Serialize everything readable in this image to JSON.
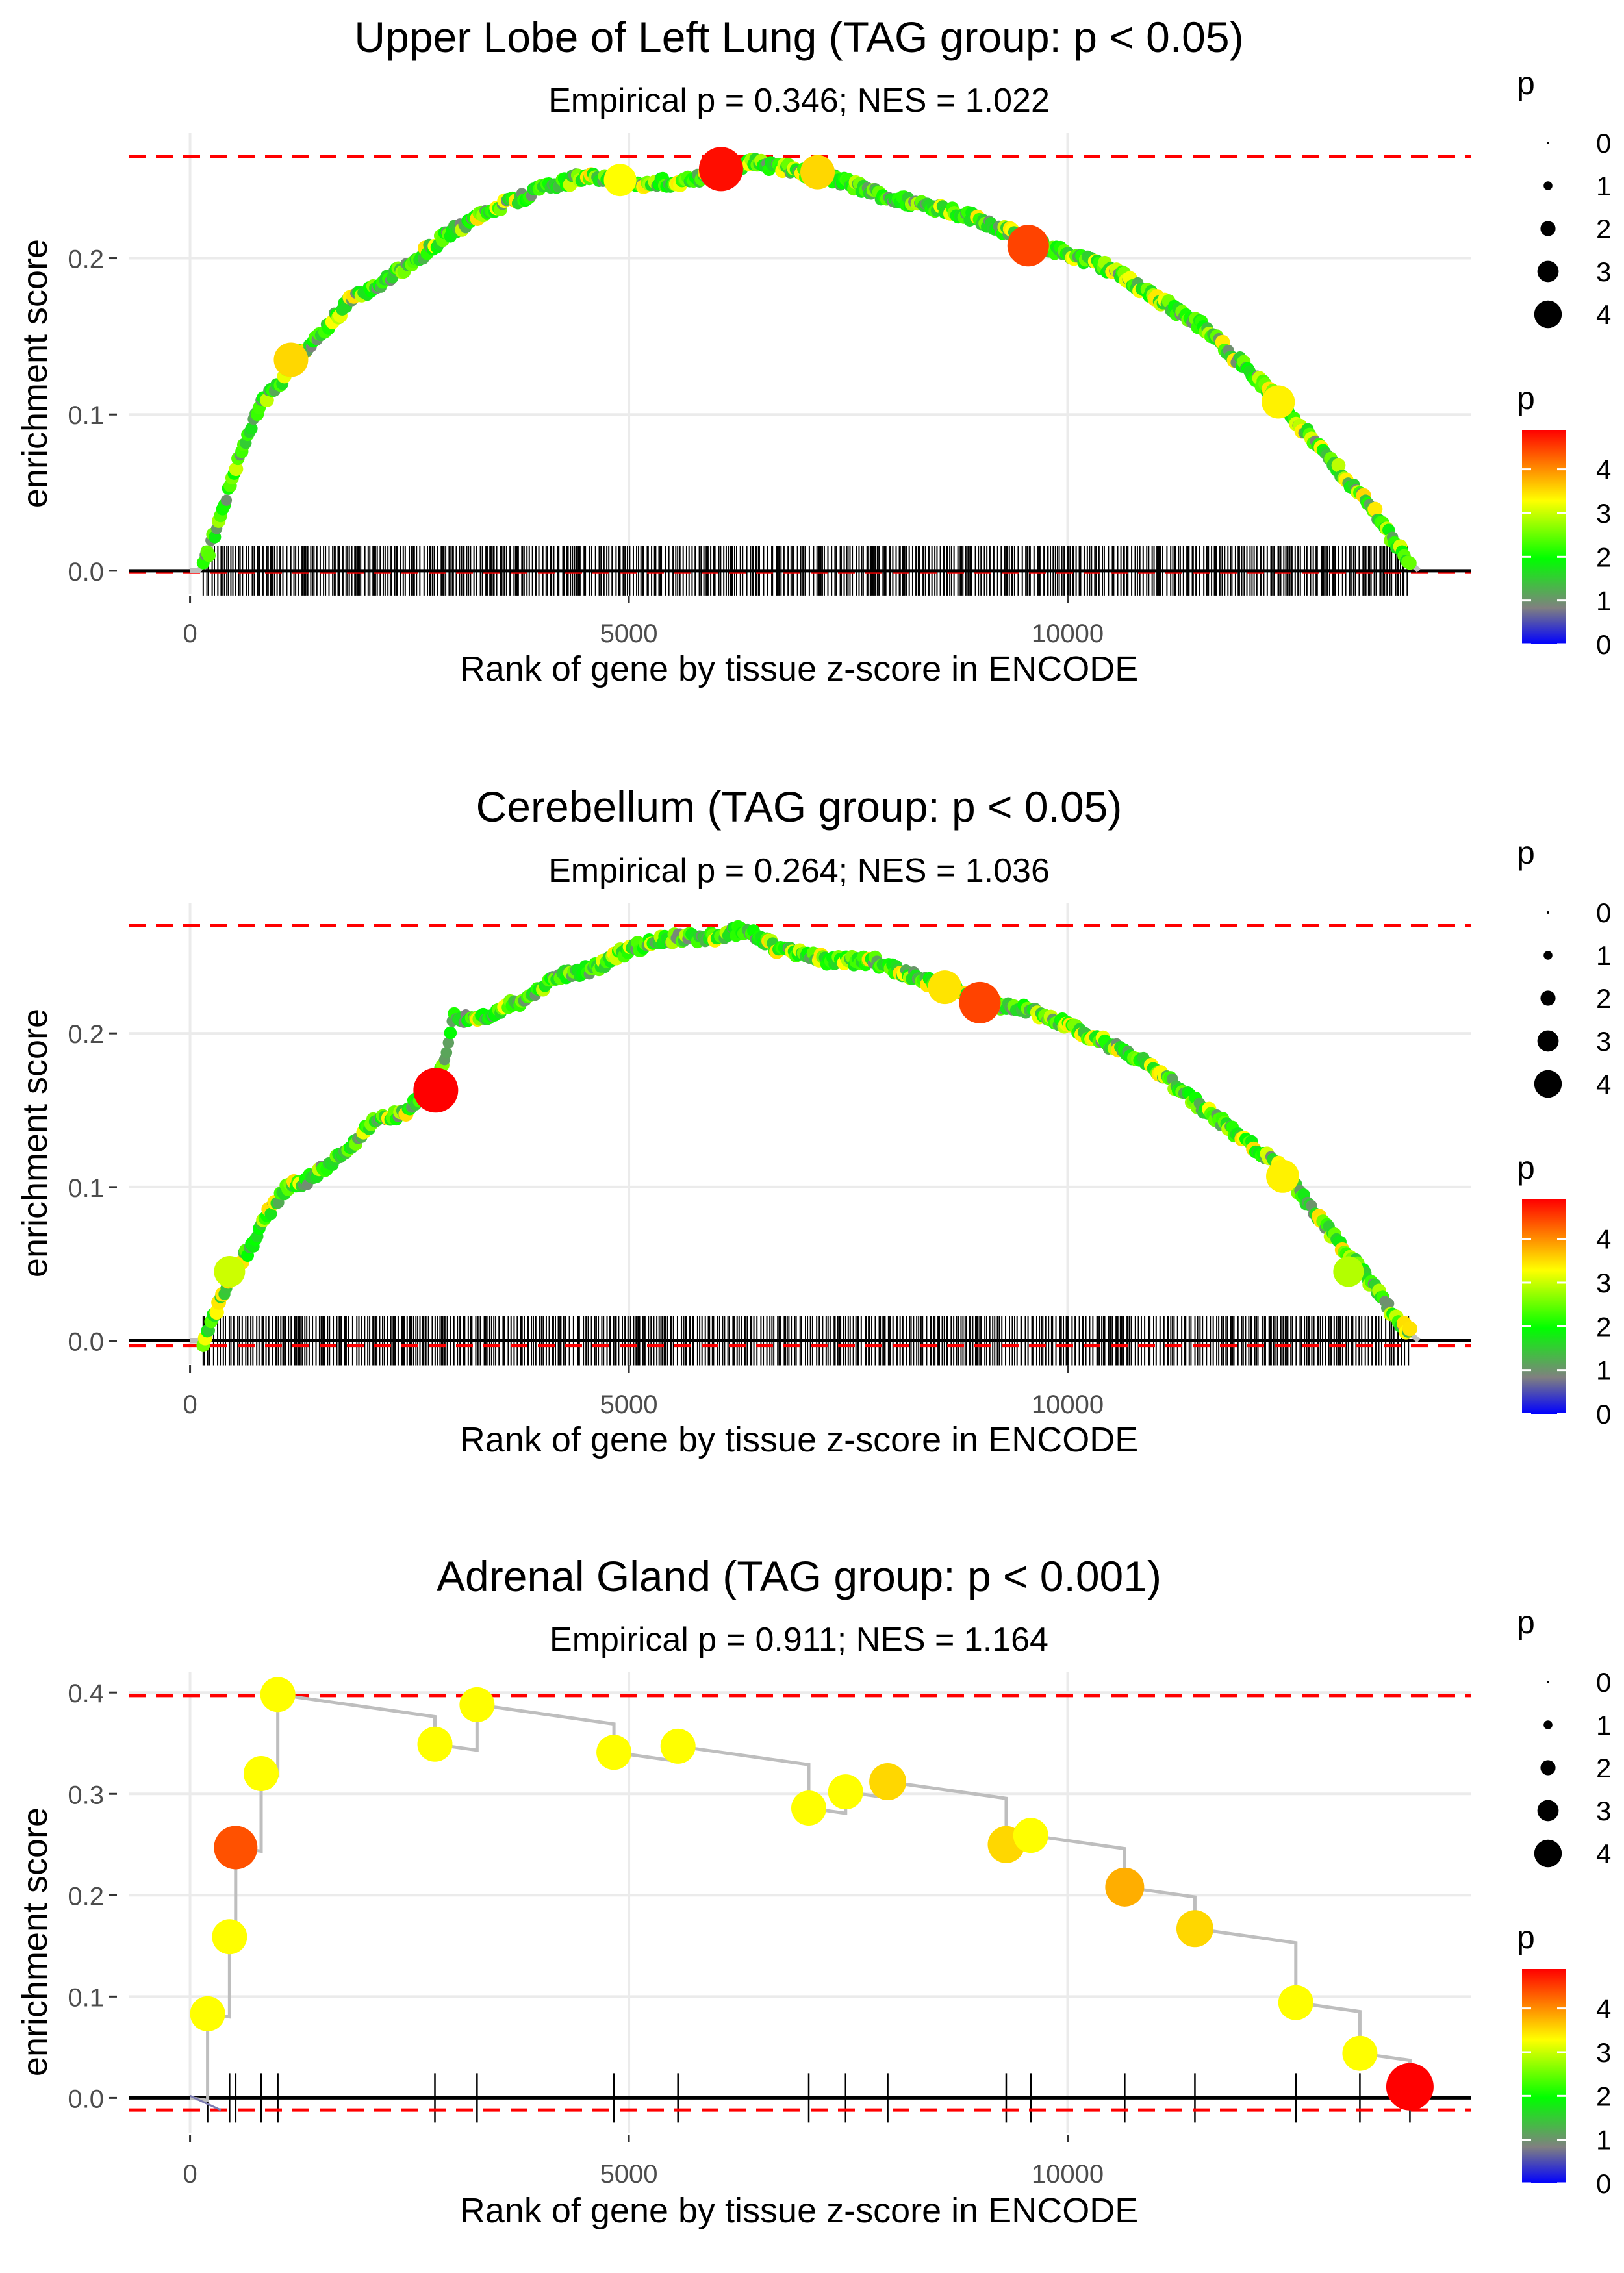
{
  "colors": {
    "gradient": [
      "#0000ff",
      "#808080",
      "#00ff00",
      "#ffff00",
      "#ff0000"
    ],
    "threshold": "#ff0000",
    "grid": "#ebebeb",
    "line": "#bebebe",
    "axis_text": "#4d4d4d"
  },
  "chart_data": [
    {
      "type": "line",
      "title": "Upper Lobe of Left Lung (TAG group: p < 0.05)",
      "subtitle": "Empirical p = 0.346; NES = 1.022",
      "xlabel": "Rank of gene by tissue z-score in ENCODE",
      "ylabel": "enrichment score",
      "xlim": [
        -700,
        14600
      ],
      "ylim": [
        -0.015,
        0.28
      ],
      "xticks": [
        0,
        5000,
        10000
      ],
      "xtick_labels": [
        "0",
        "5000",
        "10000"
      ],
      "yticks": [
        0.0,
        0.1,
        0.2
      ],
      "ytick_labels": [
        "0.0",
        "0.1",
        "0.2"
      ],
      "es_max": 0.265,
      "es_min": -0.001,
      "n_genes": 14000,
      "density": "dense",
      "curve": [
        [
          0,
          0
        ],
        [
          100,
          0
        ],
        [
          200,
          0.01
        ],
        [
          400,
          0.045
        ],
        [
          600,
          0.08
        ],
        [
          800,
          0.107
        ],
        [
          1000,
          0.118
        ],
        [
          1200,
          0.135
        ],
        [
          1500,
          0.152
        ],
        [
          1800,
          0.172
        ],
        [
          2200,
          0.185
        ],
        [
          2600,
          0.2
        ],
        [
          3000,
          0.218
        ],
        [
          3500,
          0.232
        ],
        [
          4000,
          0.244
        ],
        [
          4500,
          0.253
        ],
        [
          5000,
          0.249
        ],
        [
          5500,
          0.248
        ],
        [
          6000,
          0.253
        ],
        [
          6400,
          0.262
        ],
        [
          6800,
          0.257
        ],
        [
          7200,
          0.253
        ],
        [
          7600,
          0.246
        ],
        [
          8000,
          0.238
        ],
        [
          8500,
          0.233
        ],
        [
          9000,
          0.225
        ],
        [
          9500,
          0.212
        ],
        [
          10000,
          0.203
        ],
        [
          10500,
          0.193
        ],
        [
          11000,
          0.175
        ],
        [
          11500,
          0.158
        ],
        [
          12000,
          0.132
        ],
        [
          12500,
          0.103
        ],
        [
          13000,
          0.07
        ],
        [
          13500,
          0.038
        ],
        [
          13800,
          0.012
        ],
        [
          14000,
          0.0
        ]
      ],
      "highlights": [
        {
          "x": 6050,
          "y": 0.257,
          "p": 4.8
        },
        {
          "x": 9550,
          "y": 0.208,
          "p": 4.4
        },
        {
          "x": 7150,
          "y": 0.255,
          "p": 3.3
        },
        {
          "x": 1150,
          "y": 0.135,
          "p": 3.3
        },
        {
          "x": 4900,
          "y": 0.25,
          "p": 3.0
        },
        {
          "x": 12400,
          "y": 0.108,
          "p": 3.1
        }
      ],
      "legend_size": {
        "title": "p",
        "labels": [
          "0",
          "1",
          "2",
          "3",
          "4"
        ]
      },
      "legend_color": {
        "title": "p",
        "labels": [
          "4",
          "3",
          "2",
          "1",
          "0"
        ]
      }
    },
    {
      "type": "line",
      "title": "Cerebellum (TAG group: p < 0.05)",
      "subtitle": "Empirical p = 0.264; NES = 1.036",
      "xlabel": "Rank of gene by tissue z-score in ENCODE",
      "ylabel": "enrichment score",
      "xlim": [
        -700,
        14600
      ],
      "ylim": [
        -0.015,
        0.285
      ],
      "xticks": [
        0,
        5000,
        10000
      ],
      "xtick_labels": [
        "0",
        "5000",
        "10000"
      ],
      "yticks": [
        0.0,
        0.1,
        0.2
      ],
      "ytick_labels": [
        "0.0",
        "0.1",
        "0.2"
      ],
      "es_max": 0.27,
      "es_min": -0.003,
      "n_genes": 14000,
      "density": "dense",
      "curve": [
        [
          0,
          0
        ],
        [
          150,
          0
        ],
        [
          300,
          0.02
        ],
        [
          500,
          0.045
        ],
        [
          700,
          0.062
        ],
        [
          900,
          0.083
        ],
        [
          1100,
          0.1
        ],
        [
          1300,
          0.103
        ],
        [
          1500,
          0.112
        ],
        [
          1800,
          0.125
        ],
        [
          2100,
          0.143
        ],
        [
          2400,
          0.147
        ],
        [
          2700,
          0.16
        ],
        [
          2900,
          0.18
        ],
        [
          3000,
          0.21
        ],
        [
          3300,
          0.21
        ],
        [
          3800,
          0.222
        ],
        [
          4200,
          0.238
        ],
        [
          4600,
          0.242
        ],
        [
          5000,
          0.255
        ],
        [
          5500,
          0.262
        ],
        [
          6000,
          0.263
        ],
        [
          6300,
          0.268
        ],
        [
          6700,
          0.255
        ],
        [
          7200,
          0.248
        ],
        [
          7800,
          0.247
        ],
        [
          8300,
          0.236
        ],
        [
          8700,
          0.228
        ],
        [
          9100,
          0.22
        ],
        [
          9600,
          0.215
        ],
        [
          10000,
          0.205
        ],
        [
          10500,
          0.192
        ],
        [
          11000,
          0.177
        ],
        [
          11500,
          0.153
        ],
        [
          12000,
          0.132
        ],
        [
          12500,
          0.108
        ],
        [
          13000,
          0.07
        ],
        [
          13500,
          0.035
        ],
        [
          13800,
          0.01
        ],
        [
          14000,
          0.0
        ]
      ],
      "highlights": [
        {
          "x": 2800,
          "y": 0.163,
          "p": 4.9
        },
        {
          "x": 9000,
          "y": 0.22,
          "p": 4.4
        },
        {
          "x": 8600,
          "y": 0.23,
          "p": 3.2
        },
        {
          "x": 12450,
          "y": 0.107,
          "p": 3.1
        },
        {
          "x": 450,
          "y": 0.045,
          "p": 2.8
        },
        {
          "x": 13200,
          "y": 0.045,
          "p": 2.7
        }
      ],
      "legend_size": {
        "title": "p",
        "labels": [
          "0",
          "1",
          "2",
          "3",
          "4"
        ]
      },
      "legend_color": {
        "title": "p",
        "labels": [
          "4",
          "3",
          "2",
          "1",
          "0"
        ]
      }
    },
    {
      "type": "line",
      "title": "Adrenal Gland (TAG group: p < 0.001)",
      "subtitle": "Empirical p = 0.911; NES = 1.164",
      "xlabel": "Rank of gene by tissue z-score in ENCODE",
      "ylabel": "enrichment score",
      "xlim": [
        -700,
        14600
      ],
      "ylim": [
        -0.035,
        0.42
      ],
      "xticks": [
        0,
        5000,
        10000
      ],
      "xtick_labels": [
        "0",
        "5000",
        "10000"
      ],
      "yticks": [
        0.0,
        0.1,
        0.2,
        0.3,
        0.4
      ],
      "ytick_labels": [
        "0.0",
        "0.1",
        "0.2",
        "0.3",
        "0.4"
      ],
      "es_max": 0.397,
      "es_min": -0.012,
      "n_genes": 14000,
      "density": "sparse",
      "steps": [
        [
          0,
          0
        ],
        [
          200,
          0.083
        ],
        [
          450,
          0.159
        ],
        [
          520,
          0.247
        ],
        [
          810,
          0.32
        ],
        [
          1000,
          0.398
        ],
        [
          2790,
          0.349
        ],
        [
          3270,
          0.388
        ],
        [
          4830,
          0.341
        ],
        [
          5560,
          0.347
        ],
        [
          7050,
          0.286
        ],
        [
          7470,
          0.302
        ],
        [
          7950,
          0.312
        ],
        [
          9300,
          0.25
        ],
        [
          9580,
          0.259
        ],
        [
          10650,
          0.208
        ],
        [
          11450,
          0.167
        ],
        [
          12600,
          0.094
        ],
        [
          13330,
          0.044
        ],
        [
          13900,
          0.011
        ]
      ],
      "point_p": [
        3.0,
        3.0,
        3.0,
        4.3,
        3.0,
        3.0,
        3.0,
        3.0,
        3.0,
        3.0,
        3.0,
        3.0,
        3.3,
        3.3,
        3.0,
        3.6,
        3.3,
        3.0,
        3.0,
        4.9
      ],
      "end_x": 14000,
      "legend_size": {
        "title": "p",
        "labels": [
          "0",
          "1",
          "2",
          "3",
          "4"
        ]
      },
      "legend_color": {
        "title": "p",
        "labels": [
          "4",
          "3",
          "2",
          "1",
          "0"
        ]
      }
    }
  ]
}
